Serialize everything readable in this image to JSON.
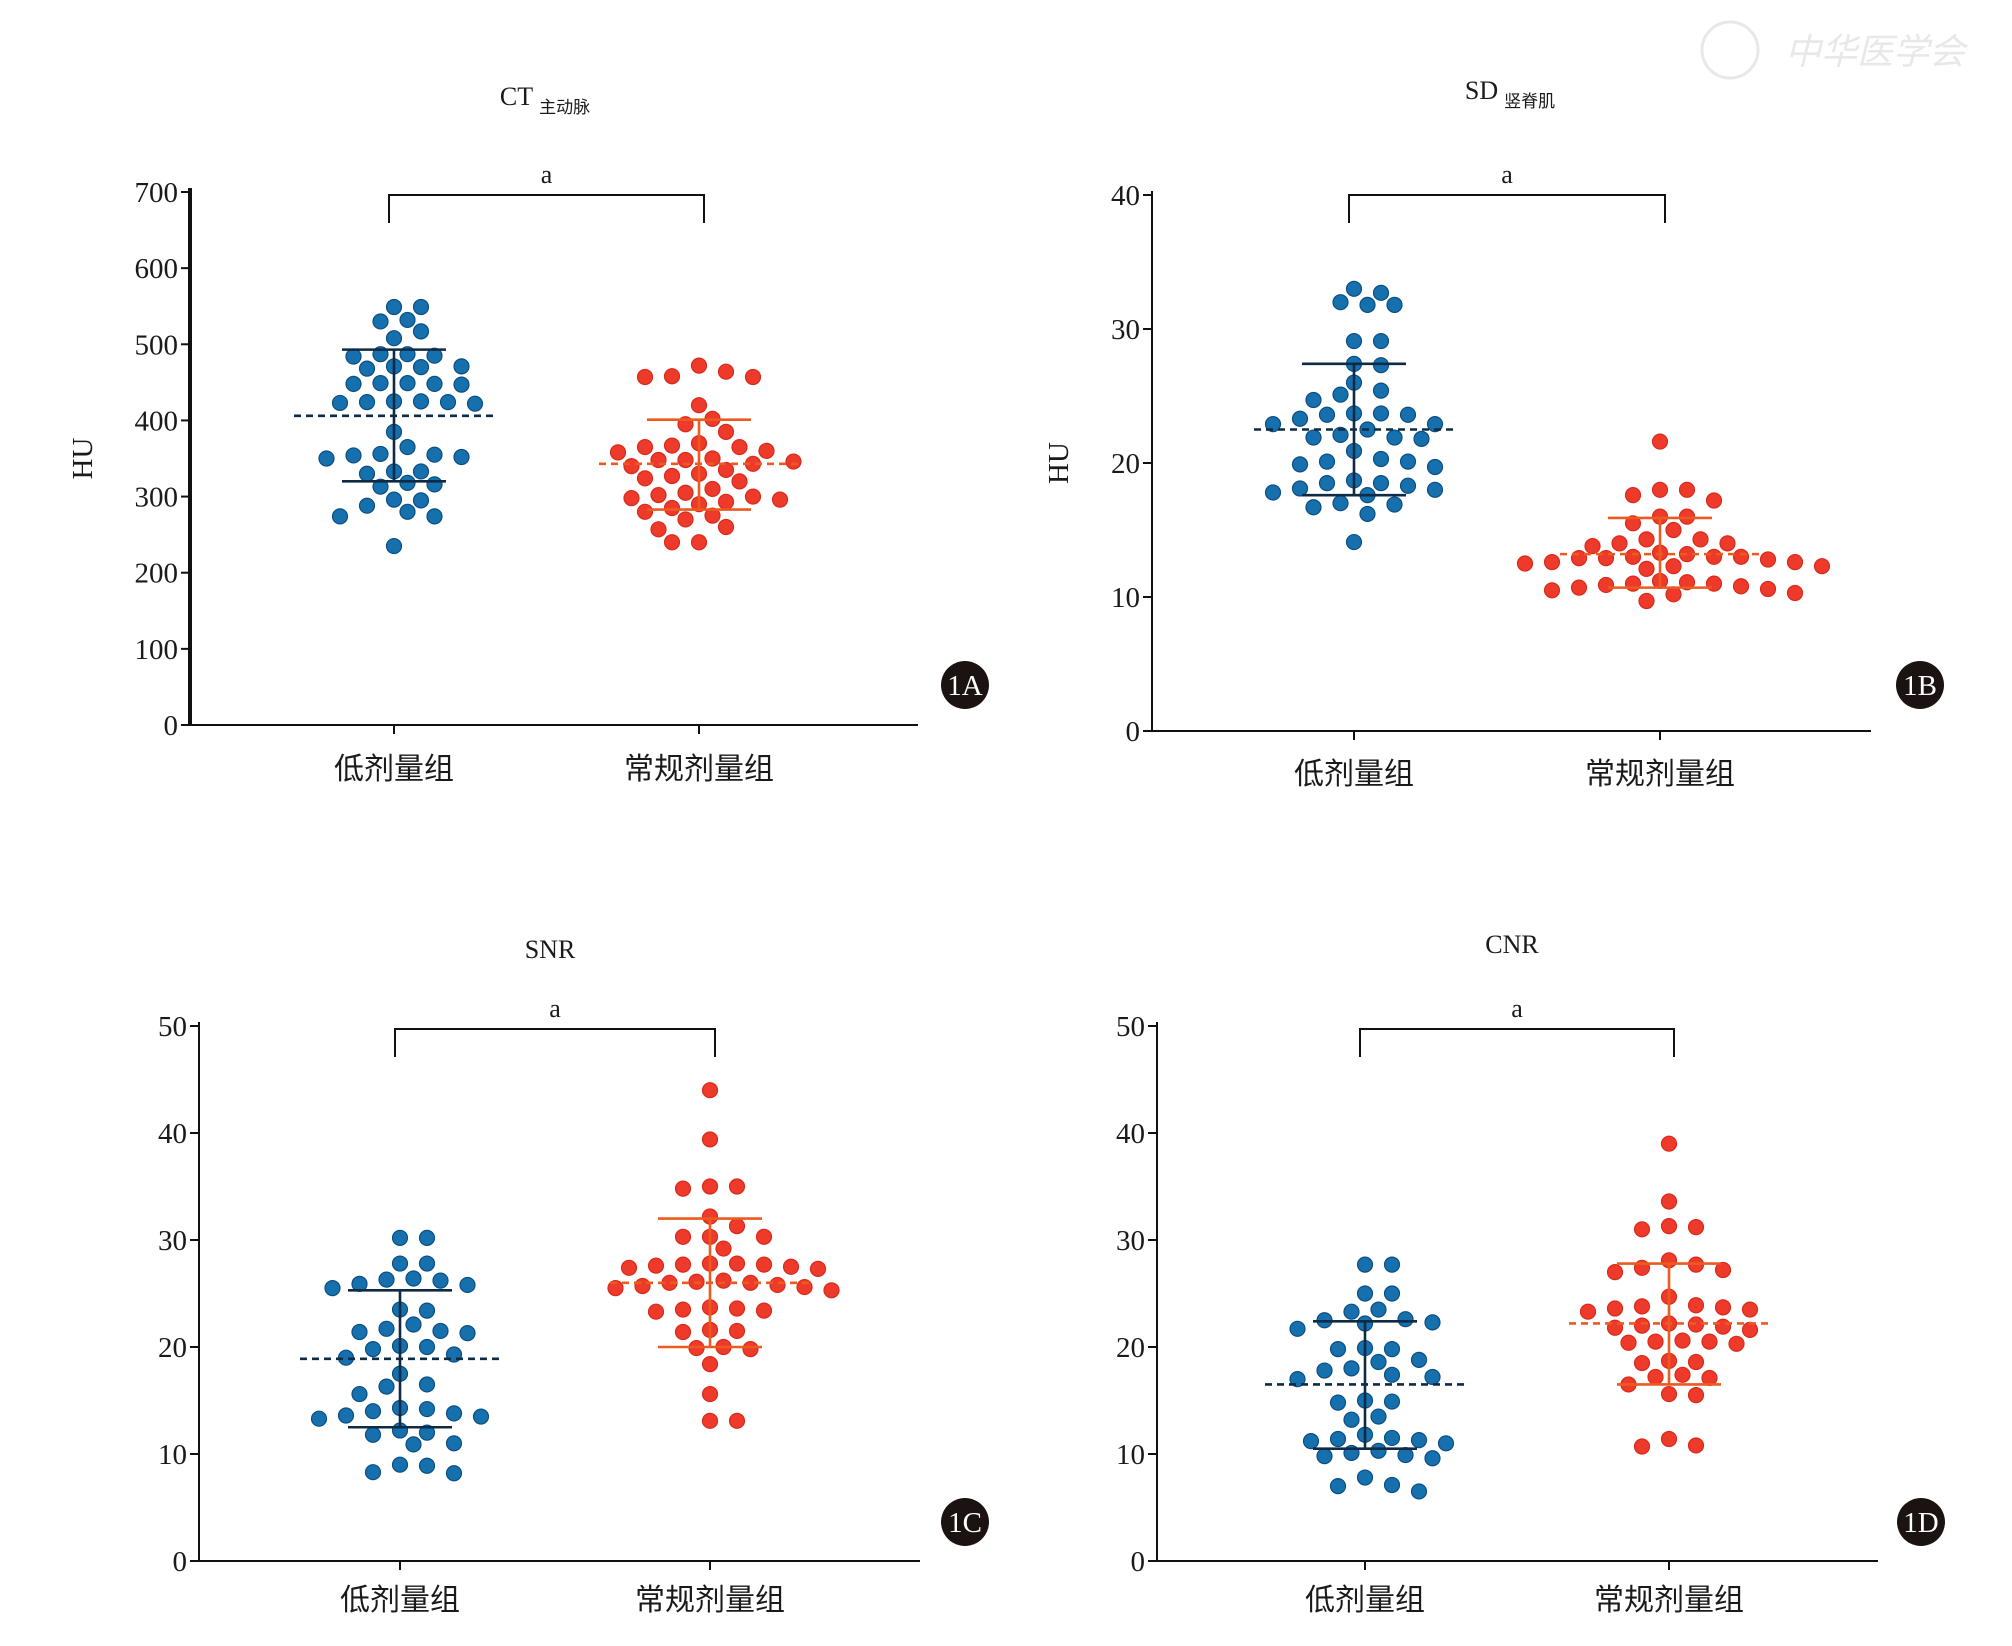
{
  "watermark": "中华医学会",
  "chart_data": [
    {
      "type": "scatter",
      "panel_label": "1A",
      "title": "CT",
      "title_sub": "主动脉",
      "ylabel": "HU",
      "ylim": [
        0,
        700
      ],
      "yticks": [
        0,
        100,
        200,
        300,
        400,
        500,
        600,
        700
      ],
      "categories": [
        "低剂量组",
        "常规剂量组"
      ],
      "significance": "a",
      "series": [
        {
          "name": "低剂量组",
          "color": "#1670ae",
          "bar_color": "#0f2a44",
          "mean": 406,
          "sd_upper": 493,
          "sd_lower": 320,
          "values": [
            549,
            549,
            532,
            530,
            517,
            508,
            487,
            487,
            485,
            484,
            471,
            471,
            470,
            468,
            449,
            449,
            448,
            448,
            447,
            425,
            425,
            424,
            424,
            423,
            422,
            385,
            365,
            356,
            355,
            354,
            352,
            350,
            333,
            333,
            330,
            318,
            316,
            313,
            296,
            295,
            288,
            280,
            274,
            274,
            235
          ]
        },
        {
          "name": "常规剂量组",
          "color": "#ee3a2a",
          "bar_color": "#ec5a1e",
          "mean": 343,
          "sd_upper": 401,
          "sd_lower": 283,
          "values": [
            472,
            464,
            458,
            457,
            457,
            420,
            402,
            395,
            385,
            370,
            367,
            365,
            365,
            360,
            358,
            350,
            348,
            348,
            346,
            343,
            340,
            335,
            330,
            327,
            324,
            320,
            310,
            305,
            302,
            300,
            298,
            296,
            293,
            290,
            285,
            280,
            275,
            270,
            260,
            257,
            240,
            240
          ]
        }
      ]
    },
    {
      "type": "scatter",
      "panel_label": "1B",
      "title": "SD",
      "title_sub": "竖脊肌",
      "ylabel": "HU",
      "ylim": [
        0,
        40
      ],
      "yticks": [
        0,
        10,
        20,
        30,
        40
      ],
      "categories": [
        "低剂量组",
        "常规剂量组"
      ],
      "significance": "a",
      "series": [
        {
          "name": "低剂量组",
          "color": "#1670ae",
          "bar_color": "#0f2a44",
          "mean": 22.5,
          "sd_upper": 27.4,
          "sd_lower": 17.6,
          "values": [
            33.0,
            32.7,
            32.0,
            31.8,
            31.8,
            29.1,
            29.1,
            27.4,
            27.3,
            26.0,
            25.4,
            25.1,
            24.7,
            23.7,
            23.7,
            23.6,
            23.6,
            23.3,
            22.9,
            22.9,
            22.5,
            22.1,
            21.9,
            21.8,
            21.9,
            20.9,
            20.3,
            20.1,
            20.1,
            19.9,
            19.7,
            18.7,
            18.5,
            18.5,
            18.3,
            18.1,
            18.0,
            17.8,
            17.6,
            17.0,
            16.9,
            16.7,
            16.2,
            14.1
          ]
        },
        {
          "name": "常规剂量组",
          "color": "#ee3a2a",
          "bar_color": "#ec5a1e",
          "mean": 13.2,
          "sd_upper": 15.9,
          "sd_lower": 10.7,
          "values": [
            21.6,
            18.0,
            18.0,
            17.6,
            17.2,
            16.0,
            16.0,
            15.5,
            15.0,
            14.3,
            14.3,
            14.0,
            14.0,
            13.8,
            13.3,
            13.2,
            13.0,
            13.0,
            13.0,
            12.9,
            12.9,
            12.8,
            12.6,
            12.6,
            12.5,
            12.3,
            12.3,
            12.1,
            11.2,
            11.1,
            11.0,
            11.0,
            10.9,
            10.8,
            10.7,
            10.6,
            10.5,
            10.3,
            10.2,
            9.7
          ]
        }
      ]
    },
    {
      "type": "scatter",
      "panel_label": "1C",
      "title": "SNR",
      "title_sub": "",
      "ylabel": "",
      "ylim": [
        0,
        50
      ],
      "yticks": [
        0,
        10,
        20,
        30,
        40,
        50
      ],
      "categories": [
        "低剂量组",
        "常规剂量组"
      ],
      "significance": "a",
      "series": [
        {
          "name": "低剂量组",
          "color": "#1670ae",
          "bar_color": "#0f2a44",
          "mean": 18.9,
          "sd_upper": 25.3,
          "sd_lower": 12.5,
          "values": [
            30.2,
            30.2,
            27.8,
            27.8,
            26.4,
            26.3,
            26.2,
            25.9,
            25.8,
            25.5,
            23.5,
            23.4,
            22.1,
            21.7,
            21.5,
            21.4,
            21.3,
            20.1,
            20.0,
            19.8,
            19.3,
            19.0,
            17.5,
            16.5,
            16.3,
            15.6,
            14.3,
            14.2,
            14.0,
            13.8,
            13.6,
            13.5,
            13.3,
            12.2,
            12.0,
            11.8,
            11.0,
            10.9,
            9.0,
            8.9,
            8.3,
            8.2
          ]
        },
        {
          "name": "常规剂量组",
          "color": "#ee3a2a",
          "bar_color": "#ec5a1e",
          "mean": 26.0,
          "sd_upper": 32.0,
          "sd_lower": 20.0,
          "values": [
            44.0,
            39.4,
            35.0,
            35.0,
            34.8,
            32.2,
            31.3,
            30.3,
            30.3,
            30.3,
            29.2,
            27.8,
            27.8,
            27.7,
            27.7,
            27.6,
            27.5,
            27.4,
            27.3,
            26.2,
            26.1,
            26.0,
            26.0,
            25.8,
            25.7,
            25.6,
            25.5,
            25.3,
            23.7,
            23.6,
            23.5,
            23.4,
            23.3,
            21.6,
            21.5,
            21.4,
            20.0,
            19.9,
            19.8,
            18.4,
            15.6,
            13.1,
            13.1
          ]
        }
      ]
    },
    {
      "type": "scatter",
      "panel_label": "1D",
      "title": "CNR",
      "title_sub": "",
      "ylabel": "",
      "ylim": [
        0,
        50
      ],
      "yticks": [
        0,
        10,
        20,
        30,
        40,
        50
      ],
      "categories": [
        "低剂量组",
        "常规剂量组"
      ],
      "significance": "a",
      "series": [
        {
          "name": "低剂量组",
          "color": "#1670ae",
          "bar_color": "#0f2a44",
          "mean": 16.5,
          "sd_upper": 22.4,
          "sd_lower": 10.5,
          "values": [
            27.7,
            27.7,
            25.0,
            25.0,
            23.5,
            23.3,
            22.6,
            22.5,
            22.3,
            22.2,
            21.7,
            19.9,
            19.8,
            19.8,
            18.8,
            18.6,
            18.0,
            17.8,
            17.4,
            17.2,
            17.0,
            15.0,
            14.9,
            14.8,
            13.5,
            13.2,
            11.8,
            11.5,
            11.4,
            11.3,
            11.2,
            11.0,
            10.3,
            10.1,
            9.9,
            9.8,
            9.6,
            7.8,
            7.1,
            7.0,
            6.5
          ]
        },
        {
          "name": "常规剂量组",
          "color": "#ee3a2a",
          "bar_color": "#ec5a1e",
          "mean": 22.2,
          "sd_upper": 27.8,
          "sd_lower": 16.5,
          "values": [
            39.0,
            33.6,
            31.3,
            31.2,
            31.0,
            28.1,
            27.7,
            27.4,
            27.2,
            27.0,
            24.7,
            23.9,
            23.8,
            23.7,
            23.6,
            23.5,
            23.3,
            22.2,
            22.1,
            22.0,
            21.9,
            21.8,
            21.6,
            20.6,
            20.5,
            20.5,
            20.4,
            20.3,
            18.7,
            18.6,
            18.5,
            17.4,
            17.2,
            17.1,
            16.5,
            15.6,
            15.5,
            11.4,
            10.8,
            10.7
          ]
        }
      ]
    }
  ]
}
